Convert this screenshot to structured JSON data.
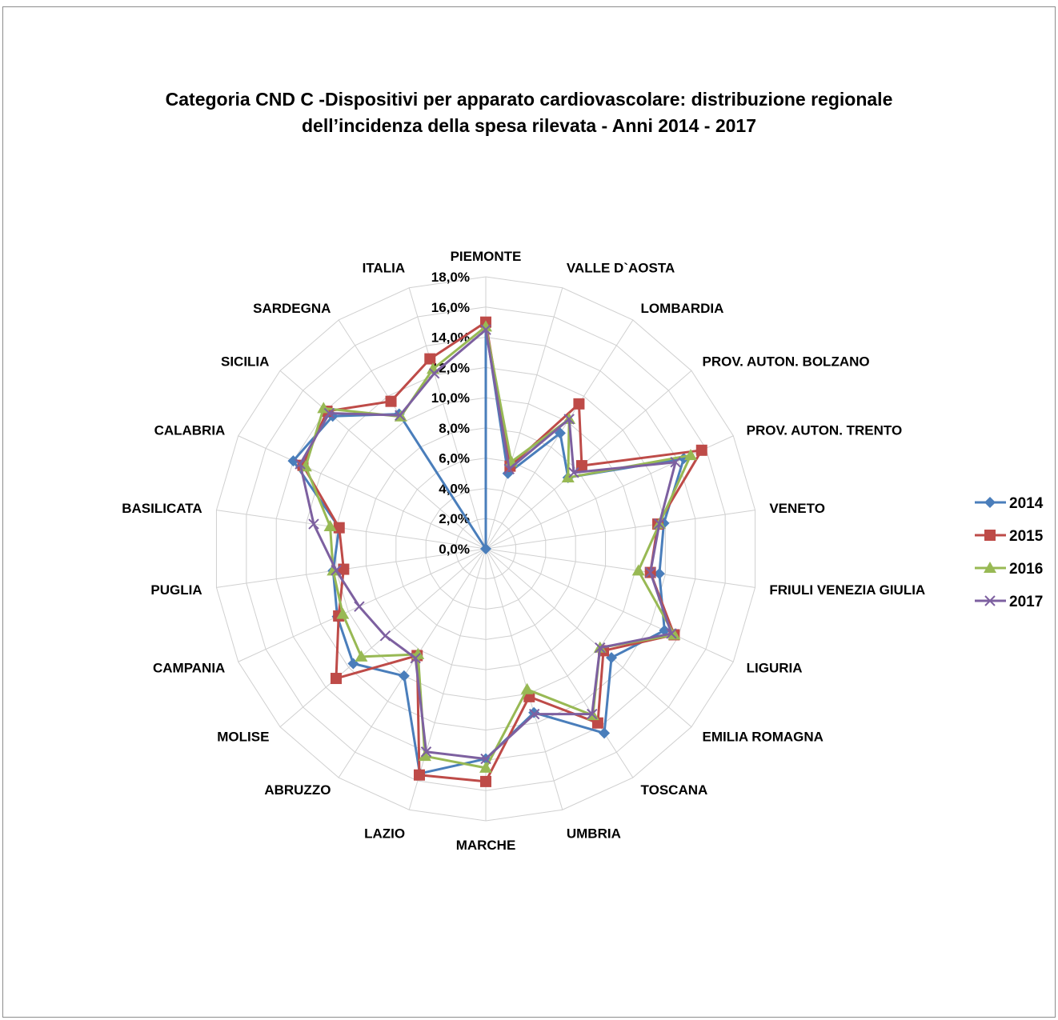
{
  "chart_data": {
    "type": "radar",
    "title_lines": [
      "Categoria CND C -Dispositivi per apparato cardiovascolare: distribuzione regionale",
      "dell’incidenza della spesa rilevata - Anni 2014 - 2017"
    ],
    "categories": [
      "PIEMONTE",
      "VALLE D`AOSTA",
      "LOMBARDIA",
      "PROV. AUTON. BOLZANO",
      "PROV. AUTON. TRENTO",
      "VENETO",
      "FRIULI VENEZIA GIULIA",
      "LIGURIA",
      "EMILIA ROMAGNA",
      "TOSCANA",
      "UMBRIA",
      "MARCHE",
      "LAZIO",
      "ABRUZZO",
      "MOLISE",
      "CAMPANIA",
      "PUGLIA",
      "BASILICATA",
      "CALABRIA",
      "SICILIA",
      "SARDEGNA",
      "ITALIA"
    ],
    "rlim": [
      0,
      18
    ],
    "tick_values": [
      0,
      2,
      4,
      6,
      8,
      10,
      12,
      14,
      16,
      18
    ],
    "tick_labels": [
      "0,0%",
      "2,0%",
      "4,0%",
      "6,0%",
      "8,0%",
      "10,0%",
      "12,0%",
      "14,0%",
      "16,0%",
      "18,0%"
    ],
    "grid": true,
    "legend_position": "right",
    "series": [
      {
        "name": "2014",
        "color": "#4a7ebb",
        "marker": "diamond",
        "values": [
          14.7,
          5.2,
          9.1,
          7.2,
          14.4,
          11.9,
          11.6,
          13.0,
          11.0,
          14.5,
          11.3,
          13.9,
          15.5,
          10.0,
          11.6,
          10.8,
          10.2,
          9.8,
          14.0,
          13.4,
          10.6,
          0.0
        ]
      },
      {
        "name": "2015",
        "color": "#be4b48",
        "marker": "square",
        "values": [
          15.0,
          5.7,
          11.4,
          8.4,
          15.7,
          11.5,
          11.0,
          13.7,
          10.3,
          13.7,
          10.2,
          15.4,
          15.6,
          8.4,
          13.1,
          10.7,
          9.5,
          9.8,
          13.3,
          13.9,
          11.6,
          13.1
        ]
      },
      {
        "name": "2016",
        "color": "#98b954",
        "marker": "triangle",
        "values": [
          14.7,
          6.0,
          10.2,
          7.2,
          14.9,
          11.6,
          10.2,
          13.7,
          10.0,
          13.1,
          9.7,
          14.5,
          14.3,
          8.3,
          10.9,
          10.4,
          10.2,
          10.4,
          13.1,
          14.2,
          10.4,
          12.4
        ]
      },
      {
        "name": "2017",
        "color": "#7d60a0",
        "marker": "x",
        "values": [
          14.5,
          5.5,
          10.2,
          7.7,
          13.8,
          11.6,
          11.0,
          13.5,
          10.0,
          13.0,
          11.4,
          13.9,
          14.0,
          8.6,
          8.8,
          9.2,
          10.0,
          11.5,
          13.5,
          13.7,
          10.5,
          12.1
        ]
      }
    ]
  }
}
